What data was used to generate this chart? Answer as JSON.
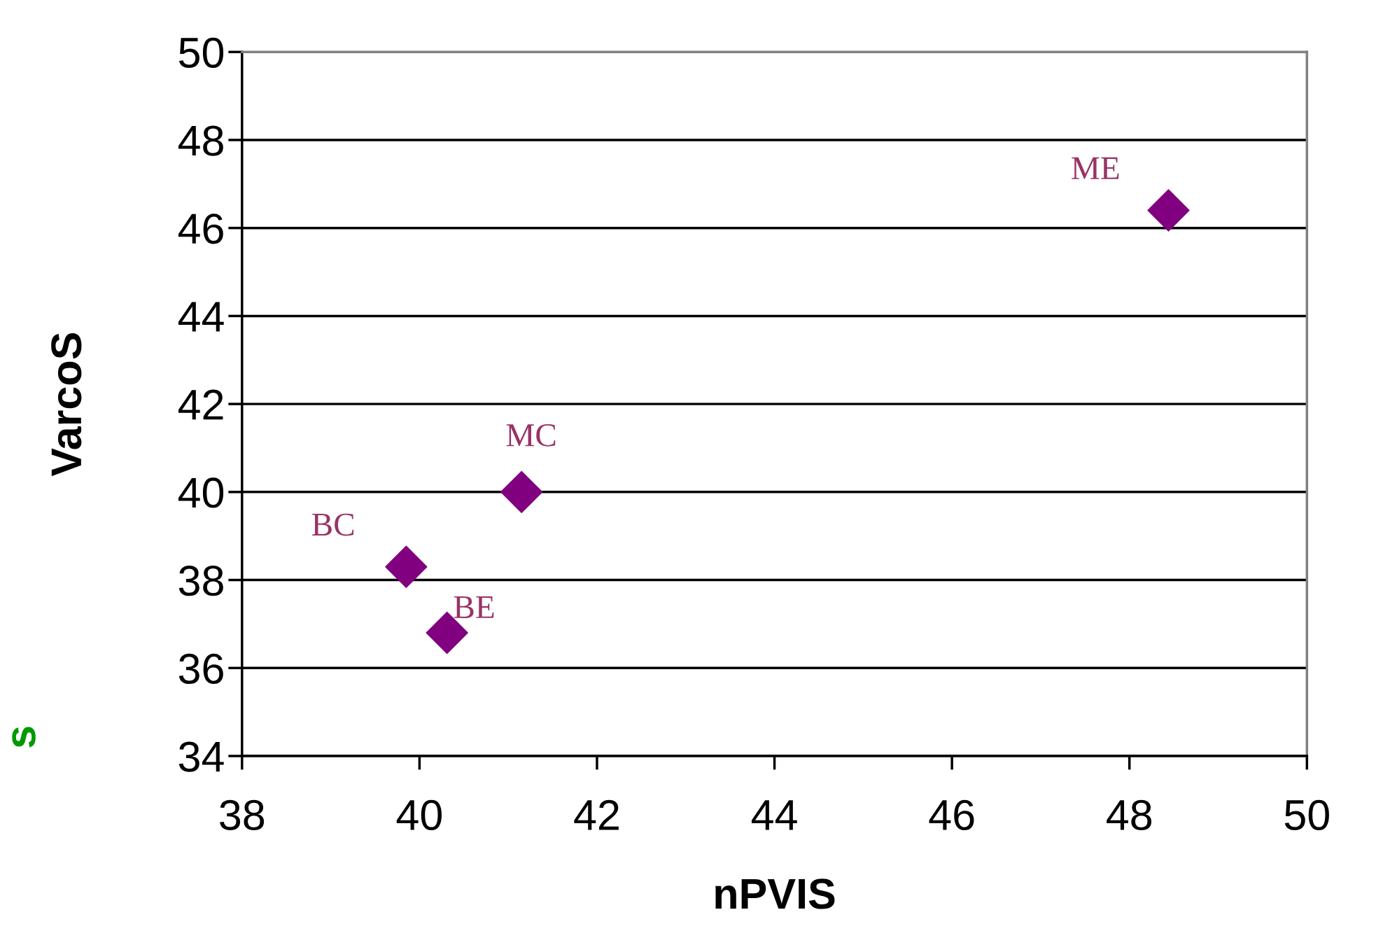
{
  "chart_data": {
    "type": "scatter",
    "xlabel": "nPVIS",
    "ylabel": "VarcoS",
    "x": [
      48.44,
      41.15,
      39.85,
      40.31
    ],
    "series": [
      {
        "color": "#800080",
        "values": [
          46.4,
          40.0,
          38.3,
          36.8
        ]
      }
    ],
    "value_labels": [
      "ME",
      "MC",
      "BC",
      "BE"
    ],
    "marker": "diamond",
    "grid": "y",
    "xlim": [
      38,
      50
    ],
    "xticks": [
      38,
      40,
      42,
      44,
      46,
      48,
      50
    ],
    "ylim": [
      34,
      50
    ],
    "yticks": [
      34,
      36,
      38,
      40,
      42,
      44,
      46,
      48,
      50
    ],
    "annotations": [
      "s"
    ]
  }
}
